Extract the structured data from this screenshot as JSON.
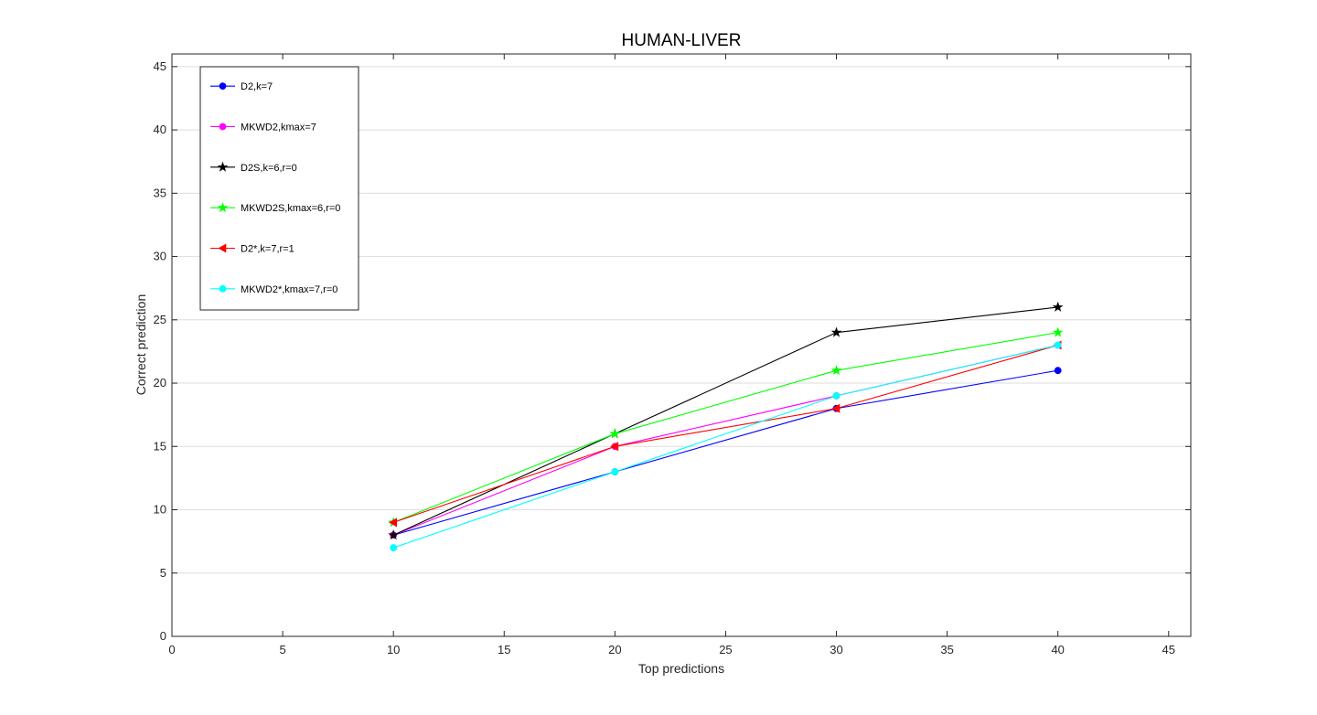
{
  "chart_data": {
    "type": "line",
    "title": "HUMAN-LIVER",
    "xlabel": "Top predictions",
    "ylabel": "Correct prediction",
    "xlim": [
      0,
      46
    ],
    "ylim": [
      0,
      46
    ],
    "x_ticks": [
      0,
      5,
      10,
      15,
      20,
      25,
      30,
      35,
      40,
      45
    ],
    "y_ticks": [
      0,
      5,
      10,
      15,
      20,
      25,
      30,
      35,
      40,
      45
    ],
    "grid": "horizontal",
    "legend_position": "top-left",
    "x": [
      10,
      20,
      30,
      40
    ],
    "series": [
      {
        "name": "D2,k=7",
        "values": [
          8,
          13,
          18,
          21
        ],
        "color": "#0000ff",
        "marker": "circle"
      },
      {
        "name": "MKWD2,kmax=7",
        "values": [
          8,
          15,
          19,
          23
        ],
        "color": "#ff00ff",
        "marker": "circle"
      },
      {
        "name": "D2S,k=6,r=0",
        "values": [
          8,
          16,
          24,
          26
        ],
        "color": "#000000",
        "marker": "star"
      },
      {
        "name": "MKWD2S,kmax=6,r=0",
        "values": [
          9,
          16,
          21,
          24
        ],
        "color": "#00ff00",
        "marker": "star"
      },
      {
        "name": "D2*,k=7,r=1",
        "values": [
          9,
          15,
          18,
          23
        ],
        "color": "#ff0000",
        "marker": "triangle-left"
      },
      {
        "name": "MKWD2*,kmax=7,r=0",
        "values": [
          7,
          13,
          19,
          23
        ],
        "color": "#00ffff",
        "marker": "circle"
      }
    ]
  }
}
